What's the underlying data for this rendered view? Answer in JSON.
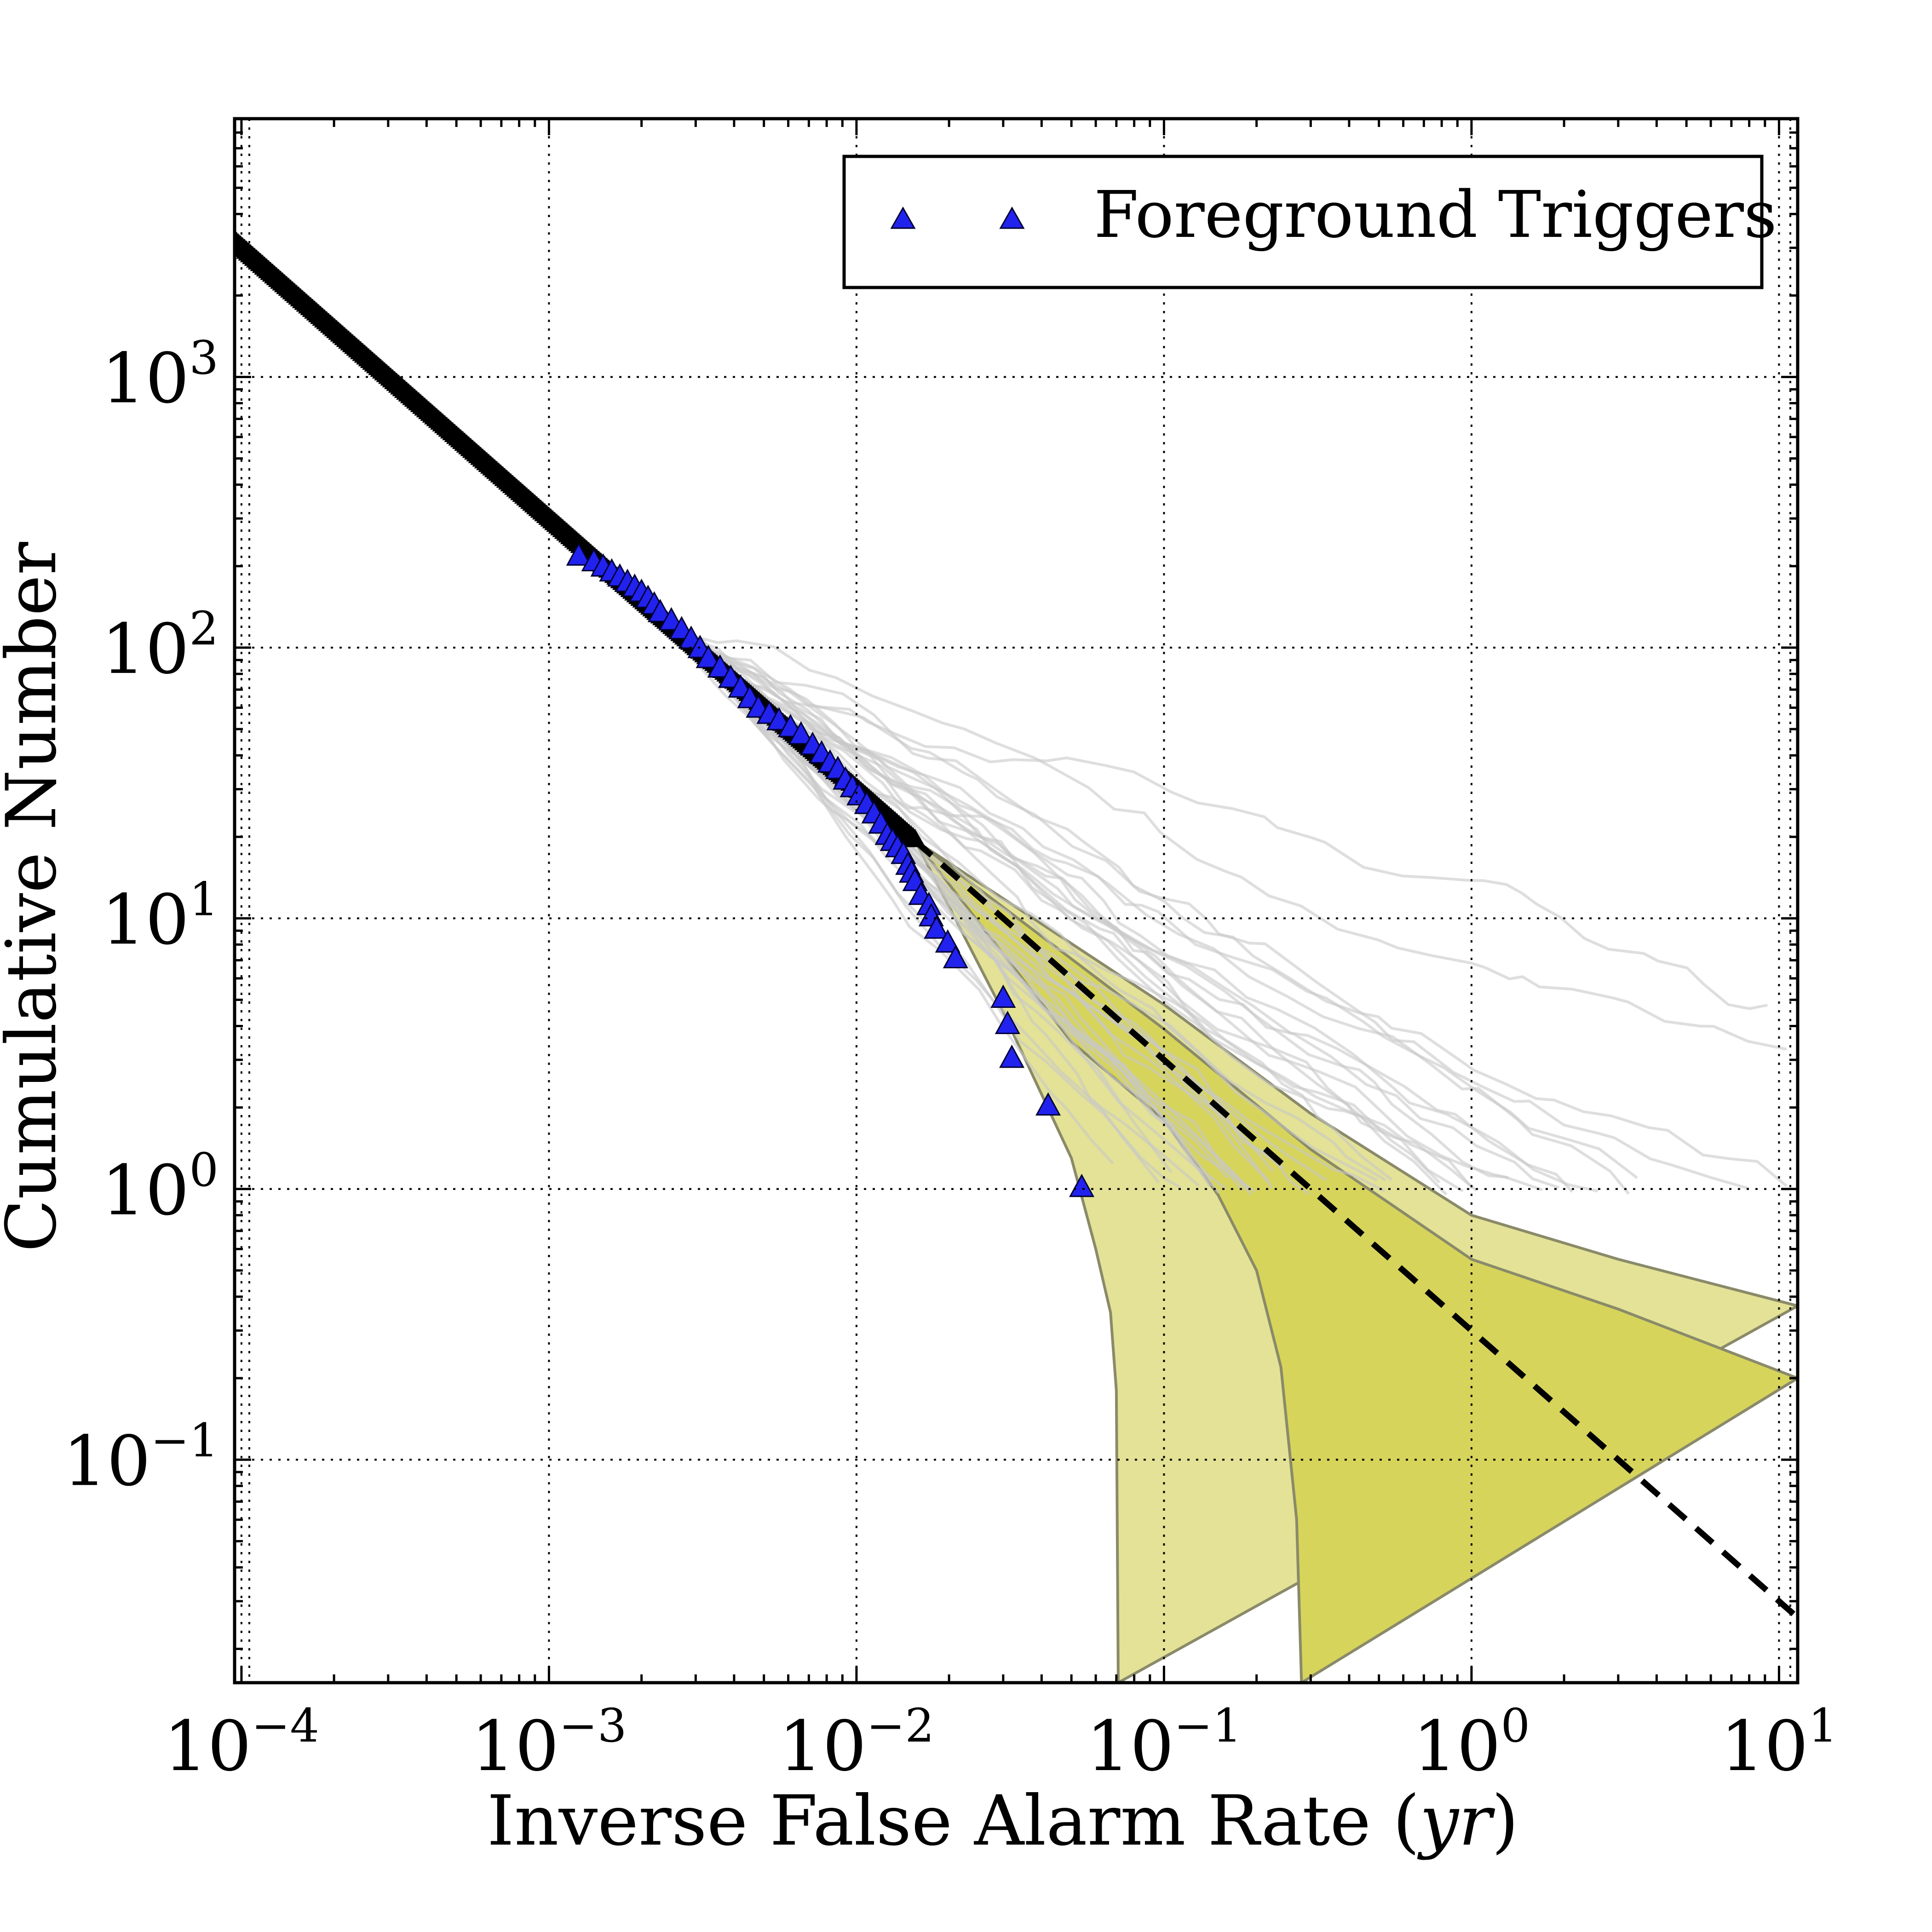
{
  "chart_data": {
    "type": "line",
    "xscale": "log",
    "yscale": "log",
    "xlabel": "Inverse False Alarm Rate (yr)",
    "xlabel_main": "Inverse False Alarm Rate (",
    "xlabel_unit": "yr",
    "xlabel_close": ")",
    "ylabel": "Cumulative Number",
    "xlim": [
      9.5e-05,
      11.5
    ],
    "ylim": [
      0.015,
      9000
    ],
    "grid": true,
    "x_ticks": [
      {
        "value": 0.0001,
        "base": "10",
        "exp": "−4"
      },
      {
        "value": 0.001,
        "base": "10",
        "exp": "−3"
      },
      {
        "value": 0.01,
        "base": "10",
        "exp": "−2"
      },
      {
        "value": 0.1,
        "base": "10",
        "exp": "−1"
      },
      {
        "value": 1,
        "base": "10",
        "exp": "0"
      },
      {
        "value": 10,
        "base": "10",
        "exp": "1"
      }
    ],
    "y_ticks": [
      {
        "value": 0.1,
        "base": "10",
        "exp": "−1"
      },
      {
        "value": 1,
        "base": "10",
        "exp": "0"
      },
      {
        "value": 10,
        "base": "10",
        "exp": "1"
      },
      {
        "value": 100,
        "base": "10",
        "exp": "2"
      },
      {
        "value": 1000,
        "base": "10",
        "exp": "3"
      }
    ],
    "legend": {
      "position": "top-right",
      "entries": [
        {
          "label": "Foreground Triggers",
          "marker": "triangle",
          "color": "#2222ee"
        }
      ]
    },
    "colors": {
      "outer_band": "#e3e296",
      "inner_band": "#d6d45b",
      "band_edge": "#8a8a6a",
      "expected_line": "#000000",
      "background_lines": "#c8c8c8",
      "marker_fill": "#2222ee",
      "marker_edge": "#000033",
      "background_markers": "#000000"
    },
    "expected_background": {
      "style": "dashed",
      "x_start": 0.0155,
      "x_end": 11.5,
      "slope": -1,
      "y_at_1": 0.3
    },
    "bands": {
      "outer": {
        "upper": [
          [
            0.0155,
            19.4
          ],
          [
            0.1,
            4.8
          ],
          [
            0.3,
            1.9
          ],
          [
            1,
            0.8
          ],
          [
            3,
            0.55
          ],
          [
            11.5,
            0.37
          ]
        ],
        "lower": [
          [
            0.0155,
            19.4
          ],
          [
            0.03,
            4.5
          ],
          [
            0.05,
            1.3
          ],
          [
            0.06,
            0.6
          ],
          [
            0.067,
            0.35
          ],
          [
            0.07,
            0.18
          ],
          [
            0.071,
            0.015
          ]
        ]
      },
      "inner": {
        "upper": [
          [
            0.0155,
            19.4
          ],
          [
            0.1,
            3.9
          ],
          [
            0.3,
            1.4
          ],
          [
            1,
            0.55
          ],
          [
            3,
            0.36
          ],
          [
            11.5,
            0.2
          ]
        ],
        "lower": [
          [
            0.0155,
            19.4
          ],
          [
            0.05,
            3.5
          ],
          [
            0.1,
            1.8
          ],
          [
            0.15,
            0.95
          ],
          [
            0.2,
            0.5
          ],
          [
            0.24,
            0.22
          ],
          [
            0.27,
            0.06
          ],
          [
            0.28,
            0.015
          ]
        ]
      }
    },
    "background_curve": {
      "x_start": 9.5e-05,
      "x_end": 0.0155,
      "slope": -1,
      "y_at_1": 0.3
    },
    "foreground_triggers": {
      "label": "Foreground Triggers",
      "x": [
        0.00125,
        0.0014,
        0.0015,
        0.0016,
        0.0017,
        0.0018,
        0.0019,
        0.002,
        0.0021,
        0.0022,
        0.0023,
        0.0025,
        0.0027,
        0.0029,
        0.0031,
        0.0033,
        0.0036,
        0.0039,
        0.0042,
        0.0045,
        0.0048,
        0.0052,
        0.0056,
        0.0061,
        0.0066,
        0.0072,
        0.0077,
        0.0082,
        0.0087,
        0.0092,
        0.0097,
        0.0102,
        0.0108,
        0.0114,
        0.012,
        0.0126,
        0.0131,
        0.0136,
        0.0142,
        0.0147,
        0.0151,
        0.0155,
        0.0162,
        0.0172,
        0.0175,
        0.0182,
        0.0198,
        0.021,
        0.03,
        0.031,
        0.032,
        0.042,
        0.054
      ],
      "y": [
        215,
        205,
        196,
        188,
        180,
        172,
        165,
        158,
        150,
        142,
        133,
        124,
        115,
        106,
        98,
        90,
        83,
        76,
        70,
        64,
        59,
        56,
        53,
        50,
        47,
        43,
        40,
        37,
        35,
        32,
        30,
        28,
        26,
        24,
        22,
        20,
        19,
        18,
        17,
        15.5,
        14.5,
        13.5,
        12,
        11,
        10,
        9,
        8,
        7,
        5,
        4,
        3,
        2,
        1
      ]
    }
  }
}
